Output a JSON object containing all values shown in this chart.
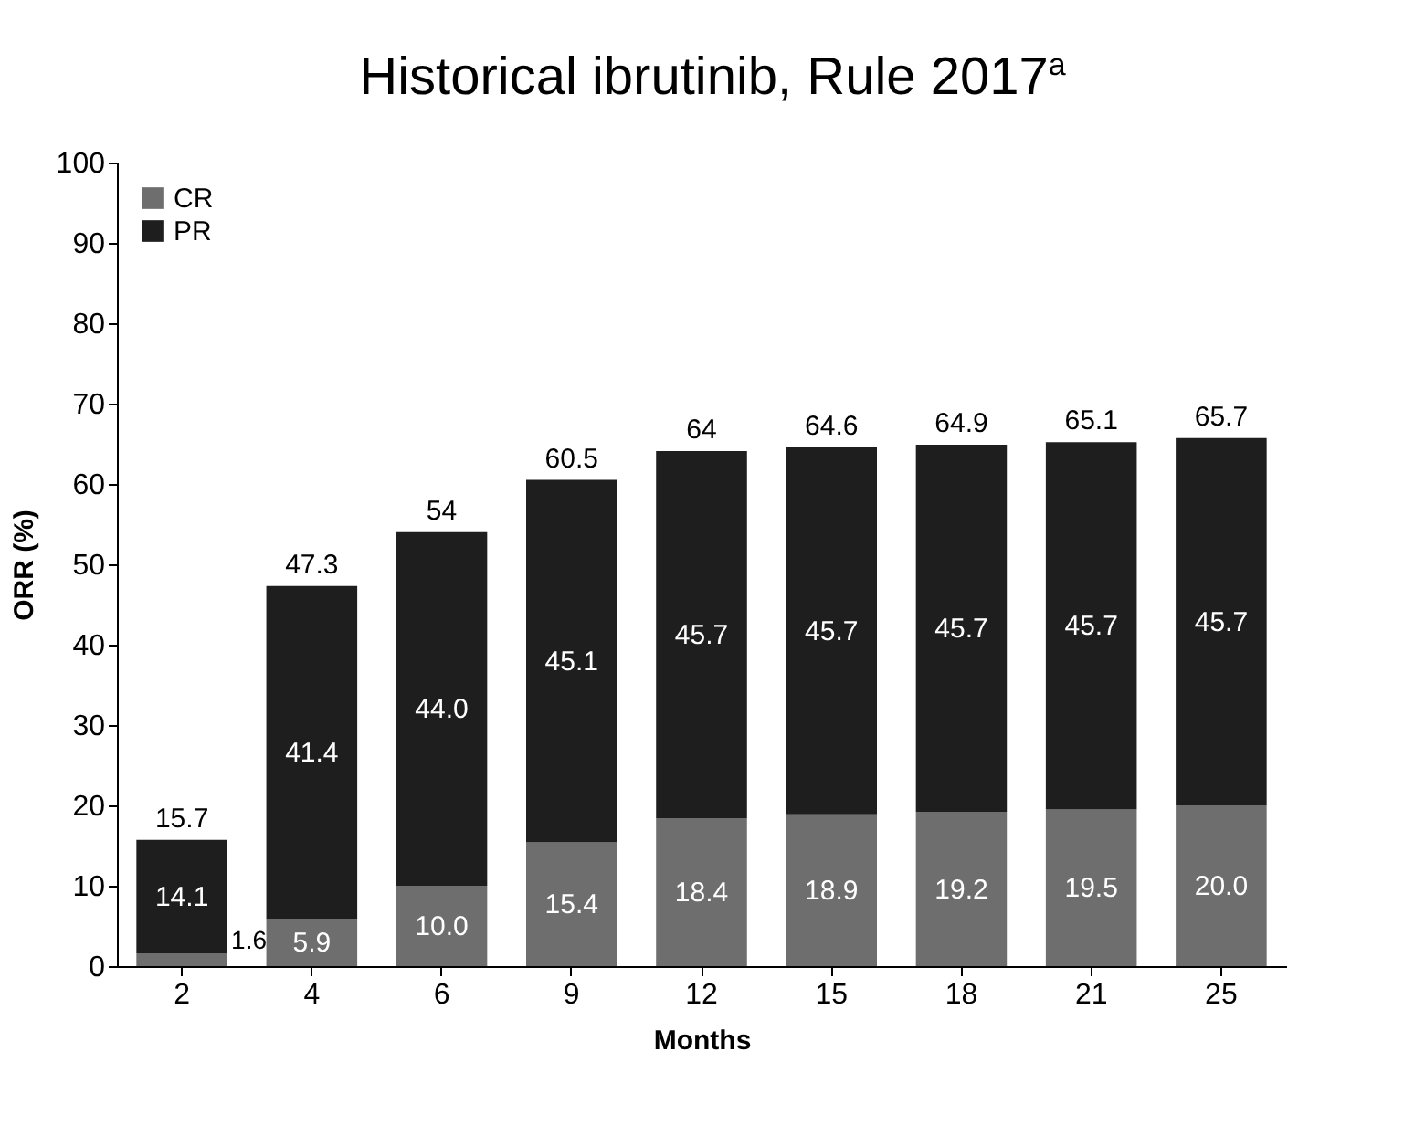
{
  "chart_data": {
    "type": "bar",
    "title": "Historical ibrutinib, Rule 2017$^{a}$",
    "xlabel": "Months",
    "ylabel": "ORR (%)",
    "categories": [
      "2",
      "4",
      "6",
      "9",
      "12",
      "15",
      "18",
      "21",
      "25"
    ],
    "stacked": true,
    "series": [
      {
        "name": "CR",
        "color": "#6e6e6e",
        "values": [
          1.6,
          5.9,
          10.0,
          15.4,
          18.4,
          18.9,
          19.2,
          19.5,
          20.0
        ],
        "value_labels": [
          "1.6",
          "5.9",
          "10.0",
          "15.4",
          "18.4",
          "18.9",
          "19.2",
          "19.5",
          "20.0"
        ]
      },
      {
        "name": "PR",
        "color": "#1e1e1e",
        "values": [
          14.1,
          41.4,
          44.0,
          45.1,
          45.7,
          45.7,
          45.7,
          45.7,
          45.7
        ],
        "value_labels": [
          "14.1",
          "41.4",
          "44.0",
          "45.1",
          "45.7",
          "45.7",
          "45.7",
          "45.7",
          "45.7"
        ]
      }
    ],
    "totals": [
      "15.7",
      "47.3",
      "54",
      "60.5",
      "64",
      "64.6",
      "64.9",
      "65.1",
      "65.7"
    ],
    "ylim": [
      0,
      100
    ],
    "yticks": [
      0,
      10,
      20,
      30,
      40,
      50,
      60,
      70,
      80,
      90,
      100
    ],
    "grid": false,
    "legend": "top left"
  }
}
